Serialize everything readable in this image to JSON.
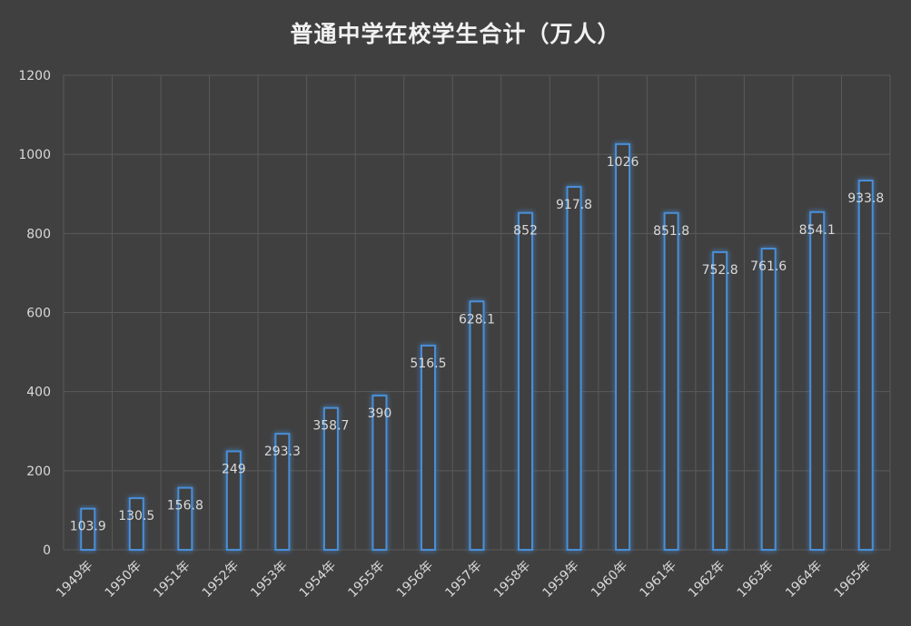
{
  "chart_data": {
    "type": "bar",
    "title": "普通中学在校学生合计（万人）",
    "categories": [
      "1949年",
      "1950年",
      "1951年",
      "1952年",
      "1953年",
      "1954年",
      "1955年",
      "1956年",
      "1957年",
      "1958年",
      "1959年",
      "1960年",
      "1961年",
      "1962年",
      "1963年",
      "1964年",
      "1965年"
    ],
    "values": [
      103.9,
      130.5,
      156.8,
      249,
      293.3,
      358.7,
      390,
      516.5,
      628.1,
      852,
      917.8,
      1026,
      851.8,
      752.8,
      761.6,
      854.1,
      933.8
    ],
    "data_labels": [
      "103.9",
      "130.5",
      "156.8",
      "249",
      "293.3",
      "358.7",
      "390",
      "516.5",
      "628.1",
      "852",
      "917.8",
      "1026",
      "851.8",
      "752.8",
      "761.6",
      "854.1",
      "933.8"
    ],
    "ylim": [
      0,
      1200
    ],
    "yticks": [
      "0",
      "200",
      "400",
      "600",
      "800",
      "1000",
      "1200"
    ],
    "xlabel": "",
    "ylabel": "",
    "grid": true,
    "legend": "none",
    "colors": {
      "background": "#404040",
      "bar_stroke": "#4a8fd8",
      "bar_fill": "#404040",
      "glow": "#5aa0e8",
      "grid": "#5a5a5a",
      "text": "#d9d9d9",
      "title": "#f2f2f2"
    }
  }
}
